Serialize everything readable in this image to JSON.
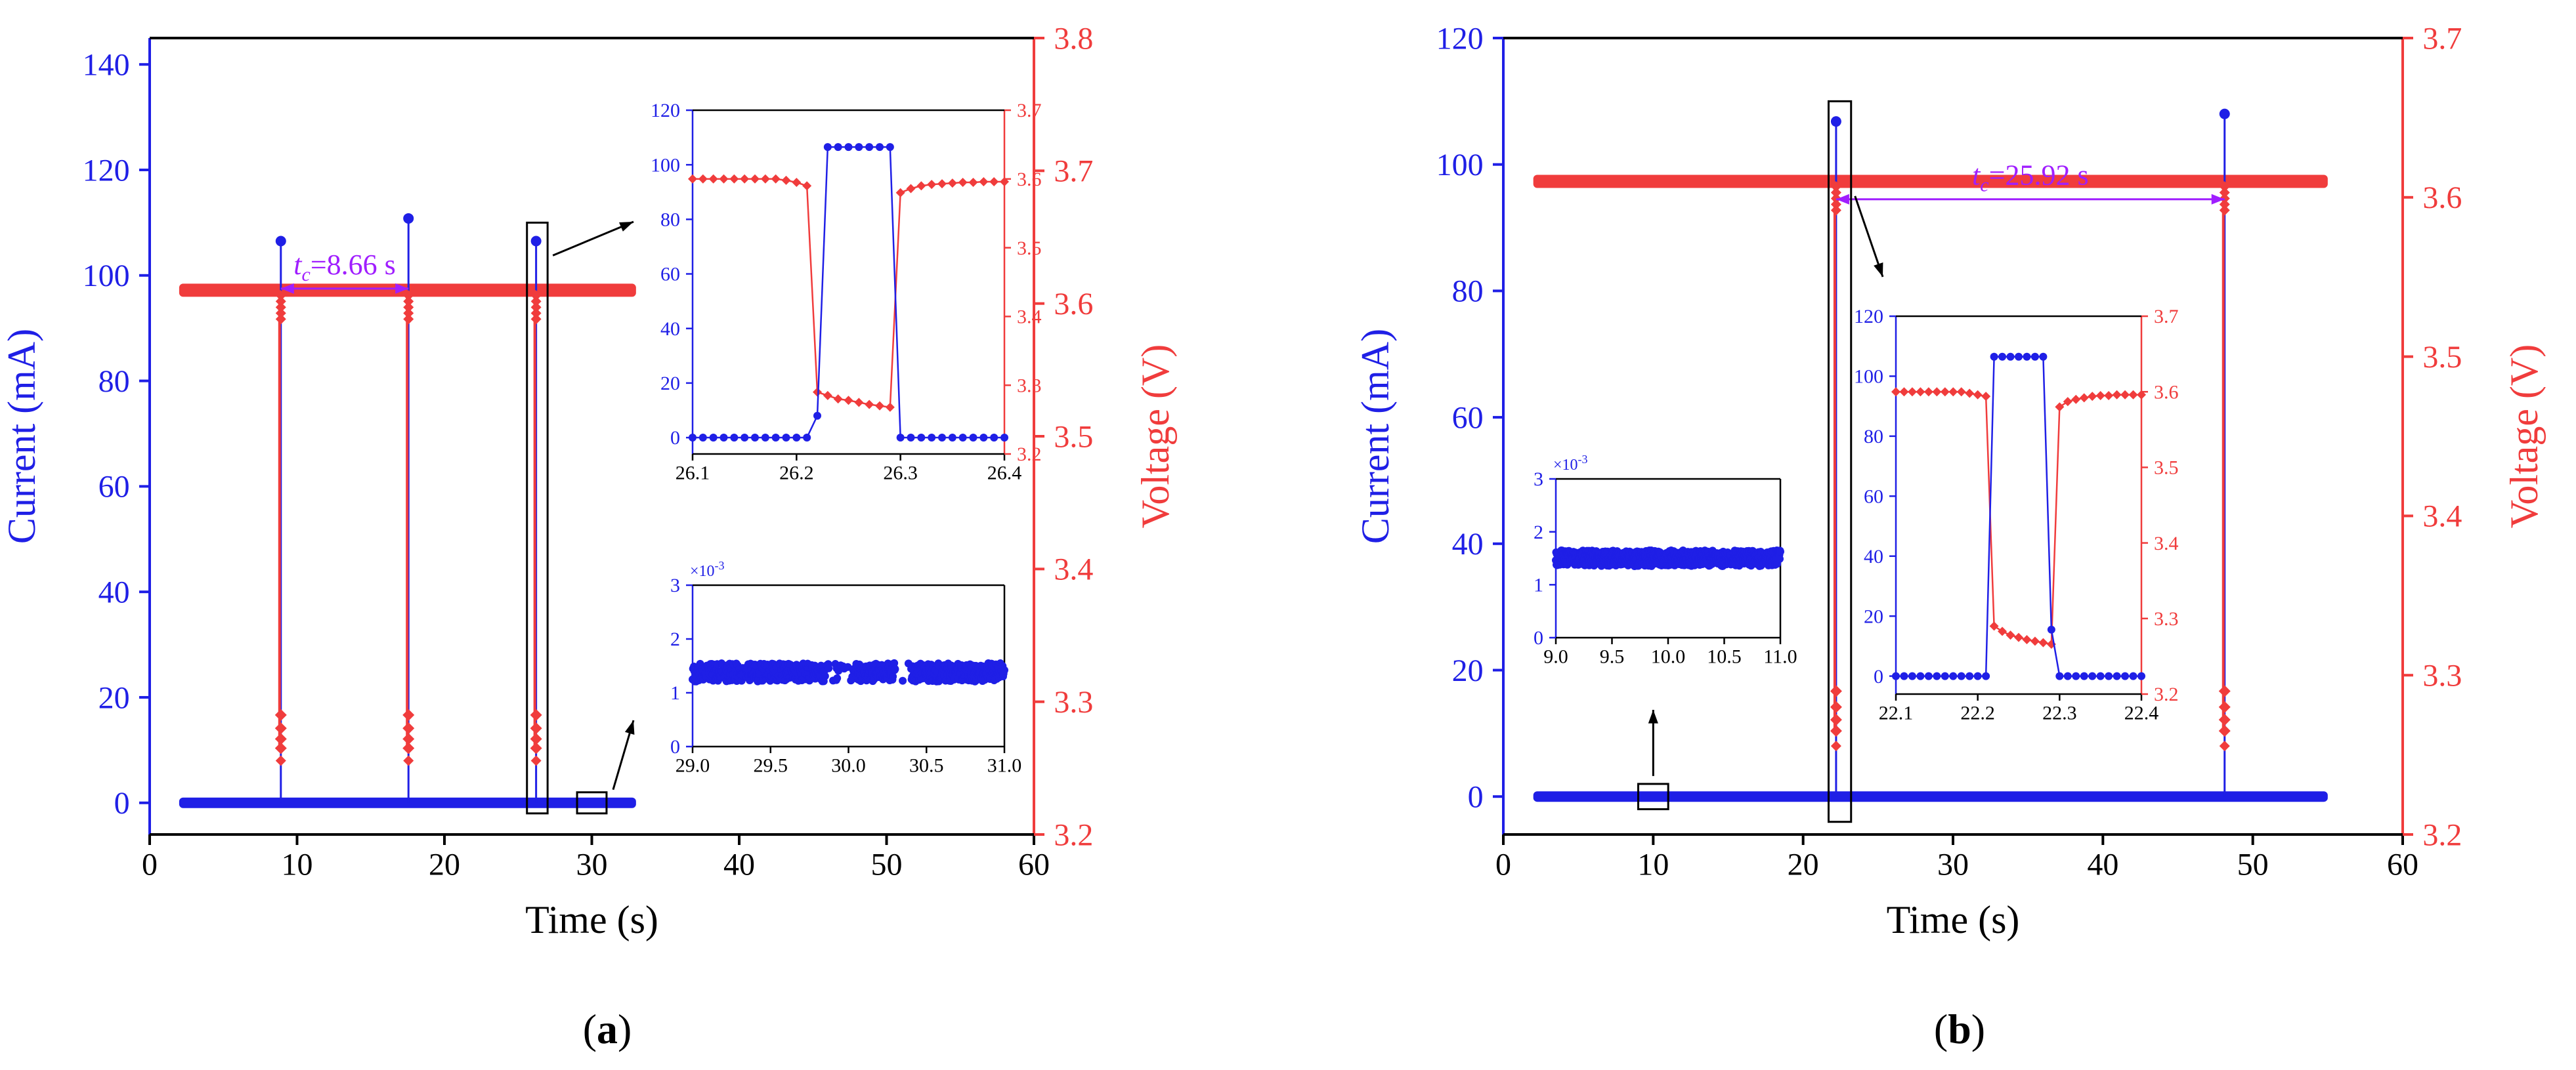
{
  "colors": {
    "current": "#1f1fe6",
    "voltage": "#f03c3c",
    "annotation": "#a01eff",
    "frame": "#000000"
  },
  "chart_data": [
    {
      "panel_label": "(a)",
      "type": "scatter",
      "title": "",
      "xlabel": "Time (s)",
      "ylabel_left": "Current (mA)",
      "ylabel_right": "Voltage (V)",
      "xlim": [
        0,
        60
      ],
      "ylim_left": [
        -6,
        145
      ],
      "ylim_right": [
        3.2,
        3.8
      ],
      "xticks": [
        "0",
        "10",
        "20",
        "30",
        "40",
        "50",
        "60"
      ],
      "xtick_values": [
        0,
        10,
        20,
        30,
        40,
        50,
        60
      ],
      "yticks_left": [
        "0",
        "20",
        "40",
        "60",
        "80",
        "100",
        "120",
        "140"
      ],
      "ytick_values_left": [
        0,
        20,
        40,
        60,
        80,
        100,
        120,
        140
      ],
      "yticks_right": [
        "3.2",
        "3.3",
        "3.4",
        "3.5",
        "3.6",
        "3.7",
        "3.8"
      ],
      "ytick_values_right": [
        3.2,
        3.3,
        3.4,
        3.5,
        3.6,
        3.7,
        3.8
      ],
      "baseline": {
        "x_range": [
          2,
          33
        ],
        "current": 0,
        "voltage": 3.61
      },
      "pulses": [
        {
          "x": 8.9,
          "current_peak": 106.5,
          "voltage_min": 3.265
        },
        {
          "x": 17.56,
          "current_peak": 110.8,
          "voltage_min": 3.265
        },
        {
          "x": 26.22,
          "current_peak": 106.5,
          "voltage_min": 3.265
        }
      ],
      "annotation": {
        "text_italic": "t",
        "text_sub": "c",
        "text_rest": "=8.66 s",
        "x_from": 8.9,
        "x_to": 17.56,
        "y": 97.5
      },
      "zoom_boxes": [
        {
          "x0": 25.6,
          "x1": 27.0,
          "y0": -2,
          "y1": 110
        },
        {
          "x0": 29.0,
          "x1": 31.0,
          "y0": -2,
          "y1": 2
        }
      ],
      "insets": [
        {
          "name": "pulse-zoom",
          "xlim": [
            26.1,
            26.4
          ],
          "ylim_left": [
            -6,
            120
          ],
          "ylim_right": [
            3.2,
            3.7
          ],
          "xticks": [
            "26.1",
            "26.2",
            "26.3",
            "26.4"
          ],
          "xtick_values": [
            26.1,
            26.2,
            26.3,
            26.4
          ],
          "yticks_left": [
            "0",
            "20",
            "40",
            "60",
            "80",
            "100",
            "120"
          ],
          "ytick_values_left": [
            0,
            20,
            40,
            60,
            80,
            100,
            120
          ],
          "yticks_right": [
            "3.2",
            "3.3",
            "3.4",
            "3.5",
            "3.6",
            "3.7"
          ],
          "ytick_values_right": [
            3.2,
            3.3,
            3.4,
            3.5,
            3.6,
            3.7
          ],
          "current_x": [
            26.1,
            26.11,
            26.12,
            26.13,
            26.14,
            26.15,
            26.16,
            26.17,
            26.18,
            26.19,
            26.2,
            26.21,
            26.22,
            26.23,
            26.24,
            26.25,
            26.26,
            26.27,
            26.28,
            26.29,
            26.3,
            26.31,
            26.32,
            26.33,
            26.34,
            26.35,
            26.36,
            26.37,
            26.38,
            26.39,
            26.4
          ],
          "current_y": [
            0,
            0,
            0,
            0,
            0,
            0,
            0,
            0,
            0,
            0,
            0,
            0,
            8,
            106.5,
            106.5,
            106.5,
            106.5,
            106.5,
            106.5,
            106.5,
            0,
            0,
            0,
            0,
            0,
            0,
            0,
            0,
            0,
            0,
            0
          ],
          "voltage_x": [
            26.1,
            26.11,
            26.12,
            26.13,
            26.14,
            26.15,
            26.16,
            26.17,
            26.18,
            26.19,
            26.2,
            26.21,
            26.22,
            26.23,
            26.24,
            26.25,
            26.26,
            26.27,
            26.28,
            26.29,
            26.3,
            26.31,
            26.32,
            26.33,
            26.34,
            26.35,
            26.36,
            26.37,
            26.38,
            26.39,
            26.4
          ],
          "voltage_y": [
            3.6,
            3.6,
            3.6,
            3.6,
            3.6,
            3.6,
            3.6,
            3.6,
            3.6,
            3.598,
            3.595,
            3.59,
            3.29,
            3.285,
            3.28,
            3.278,
            3.275,
            3.272,
            3.27,
            3.268,
            3.58,
            3.586,
            3.59,
            3.592,
            3.593,
            3.594,
            3.595,
            3.595,
            3.596,
            3.596,
            3.596
          ]
        },
        {
          "name": "baseline-zoom",
          "xlim": [
            29.0,
            31.0
          ],
          "ylim_left": [
            0,
            3
          ],
          "exponent_label": "×10",
          "exponent_power": "-3",
          "xticks": [
            "29.0",
            "29.5",
            "30.0",
            "30.5",
            "31.0"
          ],
          "xtick_values": [
            29.0,
            29.5,
            30.0,
            30.5,
            31.0
          ],
          "yticks_left": [
            "0",
            "1",
            "2",
            "3"
          ],
          "ytick_values_left": [
            0,
            1,
            2,
            3
          ],
          "noise": {
            "center": 1.38,
            "amplitude": 0.17,
            "gaps": [
              [
                29.85,
                30.03
              ],
              [
                30.3,
                30.4
              ]
            ]
          }
        }
      ]
    },
    {
      "panel_label": "(b)",
      "type": "scatter",
      "title": "",
      "xlabel": "Time (s)",
      "ylabel_left": "Current (mA)",
      "ylabel_right": "Voltage (V)",
      "xlim": [
        0,
        60
      ],
      "ylim_left": [
        -6,
        120
      ],
      "ylim_right": [
        3.2,
        3.7
      ],
      "xticks": [
        "0",
        "10",
        "20",
        "30",
        "40",
        "50",
        "60"
      ],
      "xtick_values": [
        0,
        10,
        20,
        30,
        40,
        50,
        60
      ],
      "yticks_left": [
        "0",
        "20",
        "40",
        "60",
        "80",
        "100",
        "120"
      ],
      "ytick_values_left": [
        0,
        20,
        40,
        60,
        80,
        100,
        120
      ],
      "yticks_right": [
        "3.2",
        "3.3",
        "3.4",
        "3.5",
        "3.6",
        "3.7"
      ],
      "ytick_values_right": [
        3.2,
        3.3,
        3.4,
        3.5,
        3.6,
        3.7
      ],
      "baseline": {
        "x_range": [
          2,
          55
        ],
        "current": 0,
        "voltage": 3.61
      },
      "pulses": [
        {
          "x": 22.2,
          "current_peak": 106.8,
          "voltage_min": 3.265
        },
        {
          "x": 48.12,
          "current_peak": 108.0,
          "voltage_min": 3.265
        }
      ],
      "annotation": {
        "text_italic": "t",
        "text_sub": "c",
        "text_rest": "=25.92 s",
        "x_from": 22.2,
        "x_to": 48.12,
        "y": 94.5
      },
      "zoom_boxes": [
        {
          "x0": 21.7,
          "x1": 23.2,
          "y0": -4,
          "y1": 110
        },
        {
          "x0": 9.0,
          "x1": 11.0,
          "y0": -2,
          "y1": 2
        }
      ],
      "insets": [
        {
          "name": "pulse-zoom",
          "xlim": [
            22.1,
            22.4
          ],
          "ylim_left": [
            -6,
            120
          ],
          "ylim_right": [
            3.2,
            3.7
          ],
          "xticks": [
            "22.1",
            "22.2",
            "22.3",
            "22.4"
          ],
          "xtick_values": [
            22.1,
            22.2,
            22.3,
            22.4
          ],
          "yticks_left": [
            "0",
            "20",
            "40",
            "60",
            "80",
            "100",
            "120"
          ],
          "ytick_values_left": [
            0,
            20,
            40,
            60,
            80,
            100,
            120
          ],
          "yticks_right": [
            "3.2",
            "3.3",
            "3.4",
            "3.5",
            "3.6",
            "3.7"
          ],
          "ytick_values_right": [
            3.2,
            3.3,
            3.4,
            3.5,
            3.6,
            3.7
          ],
          "current_x": [
            22.1,
            22.11,
            22.12,
            22.13,
            22.14,
            22.15,
            22.16,
            22.17,
            22.18,
            22.19,
            22.2,
            22.21,
            22.22,
            22.23,
            22.24,
            22.25,
            22.26,
            22.27,
            22.28,
            22.29,
            22.3,
            22.31,
            22.32,
            22.33,
            22.34,
            22.35,
            22.36,
            22.37,
            22.38,
            22.39,
            22.4
          ],
          "current_y": [
            0,
            0,
            0,
            0,
            0,
            0,
            0,
            0,
            0,
            0,
            0,
            0,
            106.5,
            106.5,
            106.5,
            106.5,
            106.5,
            106.5,
            106.5,
            15.5,
            0,
            0,
            0,
            0,
            0,
            0,
            0,
            0,
            0,
            0,
            0
          ],
          "voltage_x": [
            22.1,
            22.11,
            22.12,
            22.13,
            22.14,
            22.15,
            22.16,
            22.17,
            22.18,
            22.19,
            22.2,
            22.21,
            22.22,
            22.23,
            22.24,
            22.25,
            22.26,
            22.27,
            22.28,
            22.29,
            22.3,
            22.31,
            22.32,
            22.33,
            22.34,
            22.35,
            22.36,
            22.37,
            22.38,
            22.39,
            22.4
          ],
          "voltage_y": [
            3.6,
            3.6,
            3.6,
            3.6,
            3.6,
            3.6,
            3.6,
            3.6,
            3.6,
            3.598,
            3.596,
            3.594,
            3.29,
            3.283,
            3.278,
            3.275,
            3.272,
            3.27,
            3.268,
            3.266,
            3.58,
            3.587,
            3.59,
            3.592,
            3.594,
            3.595,
            3.595,
            3.596,
            3.596,
            3.596,
            3.596
          ]
        },
        {
          "name": "baseline-zoom",
          "xlim": [
            9.0,
            11.0
          ],
          "ylim_left": [
            0,
            3
          ],
          "exponent_label": "×10",
          "exponent_power": "-3",
          "xticks": [
            "9.0",
            "9.5",
            "10.0",
            "10.5",
            "11.0"
          ],
          "xtick_values": [
            9.0,
            9.5,
            10.0,
            10.5,
            11.0
          ],
          "yticks_left": [
            "0",
            "1",
            "2",
            "3"
          ],
          "ytick_values_left": [
            0,
            1,
            2,
            3
          ],
          "noise": {
            "center": 1.5,
            "amplitude": 0.15,
            "gaps": []
          }
        }
      ]
    }
  ]
}
